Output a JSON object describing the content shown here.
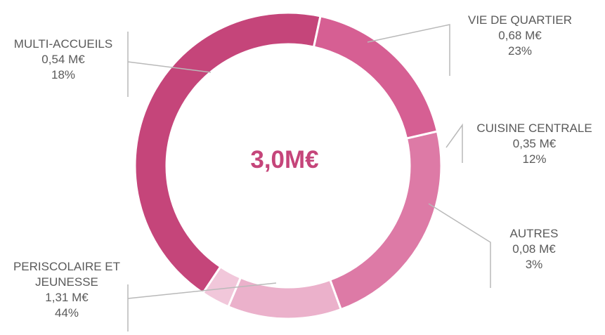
{
  "chart_data": {
    "type": "pie",
    "center_label": "3,0M€",
    "segments": [
      {
        "name": "VIE DE QUARTIER",
        "value_label": "0,68 M€",
        "value": 0.68,
        "percent_label": "23%",
        "percent": 23,
        "color": "#dd7aa6"
      },
      {
        "name": "CUISINE CENTRALE",
        "value_label": "0,35 M€",
        "value": 0.35,
        "percent_label": "12%",
        "percent": 12,
        "color": "#ebb1cb"
      },
      {
        "name": "AUTRES",
        "value_label": "0,08 M€",
        "value": 0.08,
        "percent_label": "3%",
        "percent": 3,
        "color": "#f1c7da"
      },
      {
        "name_lines": [
          "PERISCOLAIRE ET",
          "JEUNESSE"
        ],
        "name": "PERISCOLAIRE ET JEUNESSE",
        "value_label": "1,31 M€",
        "value": 1.31,
        "percent_label": "44%",
        "percent": 44,
        "color": "#c5457a"
      },
      {
        "name": "MULTI-ACCUEILS",
        "value_label": "0,54 M€",
        "value": 0.54,
        "percent_label": "18%",
        "percent": 18,
        "color": "#d65f93"
      }
    ]
  }
}
